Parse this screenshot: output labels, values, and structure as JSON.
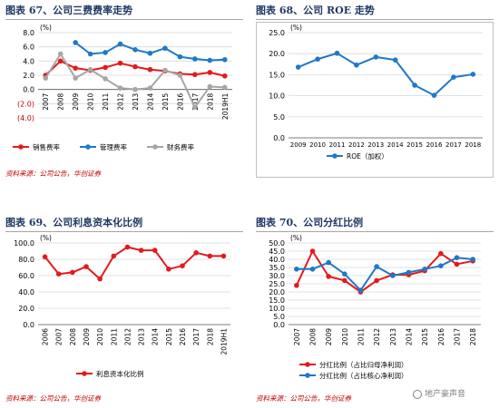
{
  "charts": [
    {
      "title": "图表 67、公司三费费率走势",
      "source": "资料来源：公司公告，华创证券",
      "chart_data": {
        "type": "line",
        "unit_label": "(%)",
        "categories": [
          "2007",
          "2008",
          "2009",
          "2010",
          "2011",
          "2012",
          "2013",
          "2014",
          "2015",
          "2016",
          "2017",
          "2018",
          "2019H1"
        ],
        "ylim": [
          -4,
          8
        ],
        "yticks": [
          -4,
          -2,
          0,
          2,
          4,
          6,
          8
        ],
        "ytick_labels": [
          "(4.0)",
          "(2.0)",
          "0.0",
          "2.0",
          "4.0",
          "6.0",
          "8.0"
        ],
        "grid": true,
        "legend_position": "bottom",
        "series": [
          {
            "name": "销售费率",
            "color": "#e31a1c",
            "values": [
              2.0,
              4.0,
              3.0,
              2.7,
              3.1,
              3.7,
              3.2,
              2.8,
              2.6,
              2.2,
              2.1,
              2.4,
              1.9
            ]
          },
          {
            "name": "管理费率",
            "color": "#1f78c8",
            "values": [
              null,
              null,
              6.6,
              5.0,
              5.2,
              6.4,
              5.6,
              5.1,
              5.8,
              4.6,
              4.3,
              4.1,
              4.2
            ]
          },
          {
            "name": "财务费率",
            "color": "#a6a6a6",
            "values": [
              1.6,
              5.0,
              1.6,
              2.8,
              1.5,
              0.2,
              0.0,
              0.2,
              2.7,
              2.0,
              -2.5,
              0.4,
              0.3
            ]
          }
        ]
      }
    },
    {
      "title": "图表 68、公司 ROE 走势",
      "source": "资料来源：公司公告，华创证券",
      "chart_data": {
        "type": "line",
        "unit_label": "(%)",
        "categories": [
          "2009",
          "2010",
          "2011",
          "2012",
          "2013",
          "2014",
          "2015",
          "2016",
          "2017",
          "2018"
        ],
        "ylim": [
          0,
          25
        ],
        "yticks": [
          0,
          5,
          10,
          15,
          20,
          25
        ],
        "ytick_labels": [
          "0.0",
          "5.0",
          "10.0",
          "15.0",
          "20.0",
          "25.0"
        ],
        "grid": true,
        "legend_position": "bottom",
        "series": [
          {
            "name": "ROE（加权）",
            "color": "#1f78c8",
            "values": [
              16.8,
              18.7,
              20.1,
              17.3,
              19.2,
              18.5,
              12.5,
              10.1,
              14.4,
              15.1
            ]
          }
        ]
      }
    },
    {
      "title": "图表 69、公司利息资本化比例",
      "source": "资料来源：公司公告，华创证券",
      "chart_data": {
        "type": "line",
        "unit_label": "(%)",
        "categories": [
          "2006",
          "2007",
          "2008",
          "2009",
          "2010",
          "2011",
          "2012",
          "2013",
          "2014",
          "2015",
          "2016",
          "2017",
          "2018",
          "2019H1"
        ],
        "ylim": [
          0,
          100
        ],
        "yticks": [
          0,
          20,
          40,
          60,
          80,
          100
        ],
        "ytick_labels": [
          "0.0",
          "20.0",
          "40.0",
          "60.0",
          "80.0",
          "100.0"
        ],
        "grid": true,
        "legend_position": "bottom",
        "series": [
          {
            "name": "利息资本化比例",
            "color": "#e31a1c",
            "values": [
              83,
              62,
              64,
              71,
              56,
              84,
              95,
              91,
              91,
              68,
              72,
              88,
              84,
              84
            ]
          }
        ]
      }
    },
    {
      "title": "图表 70、公司分红比例",
      "source": "资料来源：公司公告，华创证券",
      "chart_data": {
        "type": "line",
        "unit_label": "(%)",
        "categories": [
          "2007",
          "2008",
          "2009",
          "2010",
          "2011",
          "2012",
          "2013",
          "2014",
          "2015",
          "2016",
          "2017",
          "2018"
        ],
        "ylim": [
          0,
          50
        ],
        "yticks": [
          0,
          5,
          10,
          15,
          20,
          25,
          30,
          35,
          40,
          45,
          50
        ],
        "ytick_labels": [
          "0.0",
          "5.0",
          "10.0",
          "15.0",
          "20.0",
          "25.0",
          "30.0",
          "35.0",
          "40.0",
          "45.0",
          "50.0"
        ],
        "grid": true,
        "legend_position": "bottom",
        "series": [
          {
            "name": "分红比例（占比归母净利润）",
            "color": "#e31a1c",
            "values": [
              24,
              45,
              29.5,
              27,
              20,
              27,
              30.5,
              30.5,
              33,
              43.5,
              37,
              39
            ]
          },
          {
            "name": "分红比例（占比核心净利润）",
            "color": "#1f78c8",
            "values": [
              34,
              34,
              38,
              31,
              21,
              35.5,
              30,
              32,
              34,
              36,
              41,
              40
            ]
          }
        ]
      }
    }
  ],
  "watermark": "地产豪声音"
}
